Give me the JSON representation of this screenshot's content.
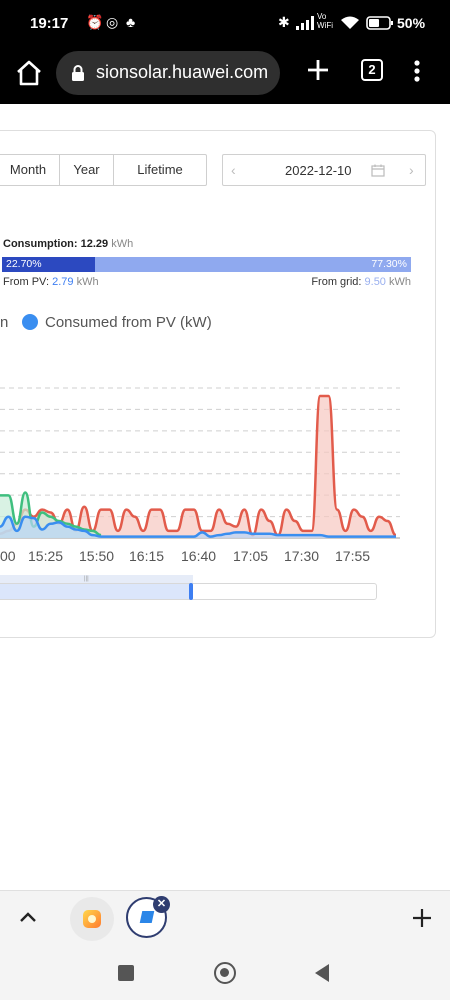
{
  "status_bar": {
    "time": "19:17",
    "battery": "50%",
    "icons": [
      "alarm-icon",
      "whatsapp-icon",
      "notification-icon",
      "bluetooth-icon",
      "signal-icon",
      "vowifi-icon",
      "wifi-icon",
      "battery-icon"
    ],
    "vowifi_label": "Vo WiFi"
  },
  "browser": {
    "url": "sionsolar.huawei.com",
    "tab_count": "2"
  },
  "period_tabs": [
    "Month",
    "Year",
    "Lifetime"
  ],
  "date_picker": {
    "value": "2022-12-10"
  },
  "consumption": {
    "label": "Consumption:",
    "value": "12.29",
    "unit": "kWh",
    "pv_percent": "22.70%",
    "pv_fraction": 0.227,
    "grid_percent": "77.30%",
    "from_pv_label": "From PV:",
    "from_pv_value": "2.79",
    "from_grid_label": "From grid:",
    "from_grid_value": "9.50",
    "unit2": "kWh"
  },
  "legend": {
    "truncated_text": "n",
    "consumed_label": "Consumed from PV (kW)",
    "consumed_color": "#3a8ef0"
  },
  "chart_data": {
    "type": "line",
    "x_ticks": [
      "00",
      "15:25",
      "15:50",
      "16:15",
      "16:40",
      "17:05",
      "17:30",
      "17:55"
    ],
    "series": [
      {
        "name": "",
        "color": "#e25b4b",
        "values": [
          0.03,
          0.05,
          0.1,
          0.2,
          0.15,
          0.2,
          0.18,
          0.1,
          0.2,
          0.05,
          0.22,
          0.05,
          0.2,
          0.2,
          0.05,
          0.2,
          0.15,
          0.05,
          0.2,
          0.2,
          0.05,
          0.05,
          0.2,
          0.2,
          0.05,
          0.05,
          0.2,
          0.1,
          0.08,
          0.2,
          0.02,
          0.2,
          0.12,
          0.02,
          0.2,
          0.12,
          0.05,
          0.05,
          1.0,
          1.0,
          0.2,
          0.05,
          0.2,
          0.15,
          0.05,
          0.15,
          0.12,
          0.02
        ]
      },
      {
        "name": "",
        "color": "#3fbf7f",
        "values": [
          0.3,
          0.3,
          0.1,
          0.32,
          0.08,
          0.18,
          0.15,
          0.12,
          0.1,
          0.08,
          0.06,
          0.05,
          0.02
        ]
      },
      {
        "name": "Consumed from PV (kW)",
        "color": "#3a8ef0",
        "values": [
          0.08,
          0.15,
          0.05,
          0.15,
          0.14,
          0.06,
          0.1,
          0.11,
          0.08,
          0.06,
          0.05,
          0.02,
          0.01,
          0.01,
          0.01,
          0.01,
          0.01,
          0.01,
          0.01,
          0.01,
          0.01,
          0.01,
          0.01,
          0.01,
          0.04,
          0.01,
          0.02,
          0.03,
          0.04,
          0.04,
          0.03,
          0.03,
          0.03,
          0.02,
          0.02,
          0.02,
          0.02,
          0.02,
          0.02,
          0.01,
          0.01,
          0.01,
          0.01,
          0.01,
          0.01,
          0.01,
          0.01,
          0.01
        ]
      }
    ],
    "grid": true
  },
  "bottom_bar": {
    "icons": [
      "chevron-up-icon",
      "plus-icon"
    ]
  }
}
